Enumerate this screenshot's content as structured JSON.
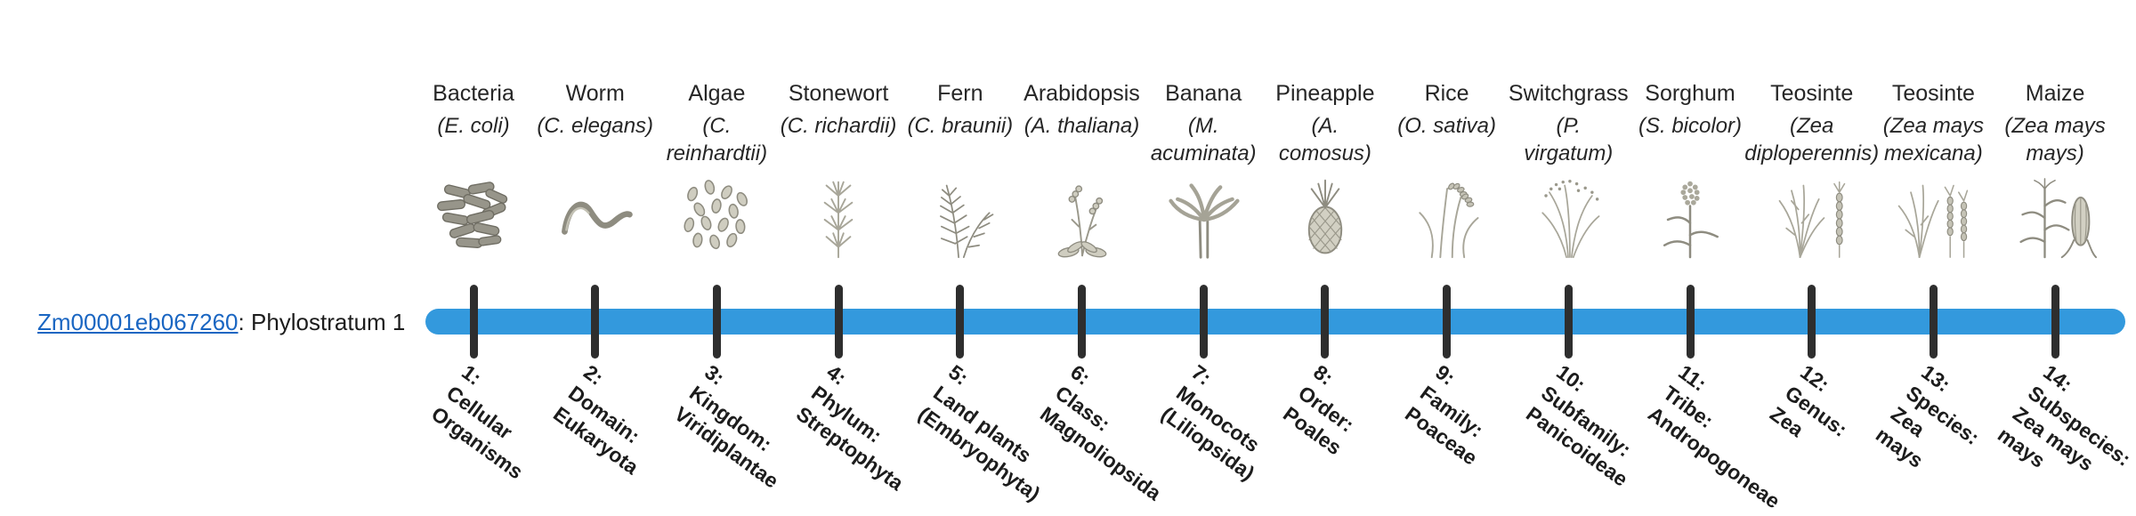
{
  "page": {
    "background": "#ffffff"
  },
  "gene_label": {
    "link_text": "Zm00001eb067260",
    "suffix": ": Phylostratum 1",
    "link_color": "#1a66c2"
  },
  "timeline": {
    "bar_color": "#3399dd",
    "tick_color": "#2e2e2e",
    "strata": [
      {
        "organism": "Bacteria",
        "species": "(E. coli)",
        "icon": "bacteria",
        "phylostratum_lines": [
          "1:",
          "Cellular",
          "Organisms"
        ]
      },
      {
        "organism": "Worm",
        "species": "(C. elegans)",
        "icon": "worm",
        "phylostratum_lines": [
          "2:",
          "Domain:",
          "Eukaryota"
        ]
      },
      {
        "organism": "Algae",
        "species": "(C.\nreinhardtii)",
        "icon": "algae",
        "phylostratum_lines": [
          "3:",
          "Kingdom:",
          "Viridiplantae"
        ]
      },
      {
        "organism": "Stonewort",
        "species": "(C. richardii)",
        "icon": "stonewort",
        "phylostratum_lines": [
          "4:",
          "Phylum:",
          "Streptophyta"
        ]
      },
      {
        "organism": "Fern",
        "species": "(C. braunii)",
        "icon": "fern",
        "phylostratum_lines": [
          "5:",
          "Land plants",
          "(Embryophyta)"
        ]
      },
      {
        "organism": "Arabidopsis",
        "species": "(A. thaliana)",
        "icon": "arabidopsis",
        "phylostratum_lines": [
          "6:",
          "Class:",
          "Magnoliopsida"
        ]
      },
      {
        "organism": "Banana",
        "species": "(M.\nacuminata)",
        "icon": "banana",
        "phylostratum_lines": [
          "7:",
          "Monocots",
          "(Liliopsida)"
        ]
      },
      {
        "organism": "Pineapple",
        "species": "(A.\ncomosus)",
        "icon": "pineapple",
        "phylostratum_lines": [
          "8:",
          "Order:",
          "Poales"
        ]
      },
      {
        "organism": "Rice",
        "species": "(O. sativa)",
        "icon": "rice",
        "phylostratum_lines": [
          "9:",
          "Family:",
          "Poaceae"
        ]
      },
      {
        "organism": "Switchgrass",
        "species": "(P.\nvirgatum)",
        "icon": "switchgrass",
        "phylostratum_lines": [
          "10:",
          "Subfamily:",
          "Panicoideae"
        ]
      },
      {
        "organism": "Sorghum",
        "species": "(S. bicolor)",
        "icon": "sorghum",
        "phylostratum_lines": [
          "11:",
          "Tribe:",
          "Andropogoneae"
        ]
      },
      {
        "organism": "Teosinte",
        "species": "(Zea\ndiploperennis)",
        "icon": "teosinte-diploperennis",
        "phylostratum_lines": [
          "12:",
          "Genus:",
          "Zea"
        ]
      },
      {
        "organism": "Teosinte",
        "species": "(Zea mays\nmexicana)",
        "icon": "teosinte-mexicana",
        "phylostratum_lines": [
          "13:",
          "Species:",
          "Zea",
          "mays"
        ]
      },
      {
        "organism": "Maize",
        "species": "(Zea mays\nmays)",
        "icon": "maize",
        "phylostratum_lines": [
          "14:",
          "Subspecies:",
          "Zea mays",
          "mays"
        ]
      }
    ]
  }
}
